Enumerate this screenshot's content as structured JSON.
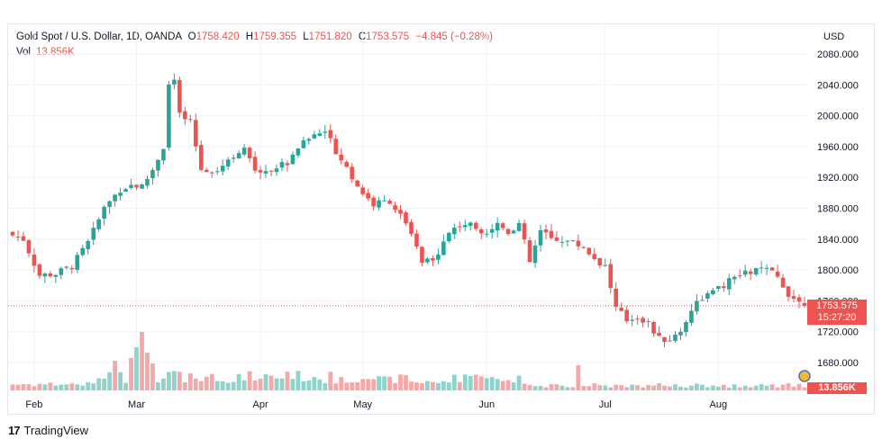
{
  "header": {
    "symbol": "Gold Spot / U.S. Dollar, 1D, OANDA",
    "open_label": "O",
    "open": "1758.420",
    "high_label": "H",
    "high": "1759.355",
    "low_label": "L",
    "low": "1751.820",
    "close_label": "C",
    "close": "1753.575",
    "change": "−4.845 (−0.28%)",
    "vol_label": "Vol",
    "vol": "13.856K",
    "currency": "USD"
  },
  "last_price": {
    "price": "1753.575",
    "countdown": "15:27:20",
    "volume": "13.856K",
    "value": 1753.575
  },
  "footer": {
    "brand": "TradingView"
  },
  "colors": {
    "up": "#26a69a",
    "down": "#ef5350",
    "up_vol": "#8fd3cd",
    "down_vol": "#f4a9a8",
    "grid": "#f0f3fa"
  },
  "chart_data": {
    "type": "candlestick",
    "title": "Gold Spot / U.S. Dollar, 1D, OANDA",
    "y_ticks": [
      1680,
      1720,
      1760,
      1800,
      1840,
      1880,
      1920,
      1960,
      2000,
      2040,
      2080
    ],
    "y_tick_labels": [
      "1680.000",
      "1720.000",
      "1760.000",
      "1800.000",
      "1840.000",
      "1880.000",
      "1920.000",
      "1960.000",
      "2000.000",
      "2040.000",
      "2080.000"
    ],
    "ylim": [
      1657,
      2096
    ],
    "x_months": [
      {
        "label": "Feb",
        "day": 4
      },
      {
        "label": "Mar",
        "day": 23
      },
      {
        "label": "Apr",
        "day": 46
      },
      {
        "label": "May",
        "day": 65
      },
      {
        "label": "Jun",
        "day": 88
      },
      {
        "label": "Jul",
        "day": 110
      },
      {
        "label": "Aug",
        "day": 131
      }
    ],
    "anchors": [
      [
        0,
        1845
      ],
      [
        2,
        1840
      ],
      [
        5,
        1793
      ],
      [
        8,
        1795
      ],
      [
        11,
        1805
      ],
      [
        14,
        1835
      ],
      [
        17,
        1880
      ],
      [
        20,
        1905
      ],
      [
        22,
        1910
      ],
      [
        24,
        1908
      ],
      [
        26,
        1930
      ],
      [
        28,
        1960
      ],
      [
        29,
        2040
      ],
      [
        30,
        2045
      ],
      [
        31,
        2000
      ],
      [
        33,
        1990
      ],
      [
        35,
        1930
      ],
      [
        38,
        1930
      ],
      [
        41,
        1950
      ],
      [
        43,
        1955
      ],
      [
        45,
        1930
      ],
      [
        48,
        1930
      ],
      [
        51,
        1940
      ],
      [
        53,
        1960
      ],
      [
        56,
        1975
      ],
      [
        58,
        1980
      ],
      [
        60,
        1955
      ],
      [
        63,
        1920
      ],
      [
        65,
        1900
      ],
      [
        67,
        1885
      ],
      [
        70,
        1890
      ],
      [
        72,
        1870
      ],
      [
        74,
        1845
      ],
      [
        76,
        1810
      ],
      [
        78,
        1810
      ],
      [
        80,
        1840
      ],
      [
        82,
        1855
      ],
      [
        84,
        1860
      ],
      [
        86,
        1855
      ],
      [
        88,
        1850
      ],
      [
        90,
        1860
      ],
      [
        92,
        1850
      ],
      [
        94,
        1860
      ],
      [
        96,
        1810
      ],
      [
        98,
        1850
      ],
      [
        100,
        1840
      ],
      [
        102,
        1840
      ],
      [
        104,
        1835
      ],
      [
        106,
        1830
      ],
      [
        108,
        1815
      ],
      [
        110,
        1805
      ],
      [
        112,
        1750
      ],
      [
        114,
        1735
      ],
      [
        116,
        1740
      ],
      [
        118,
        1730
      ],
      [
        120,
        1710
      ],
      [
        122,
        1710
      ],
      [
        124,
        1720
      ],
      [
        126,
        1750
      ],
      [
        128,
        1765
      ],
      [
        130,
        1770
      ],
      [
        132,
        1780
      ],
      [
        134,
        1790
      ],
      [
        136,
        1795
      ],
      [
        138,
        1800
      ],
      [
        140,
        1800
      ],
      [
        142,
        1790
      ],
      [
        144,
        1770
      ],
      [
        146,
        1758
      ],
      [
        147,
        1753.575
      ]
    ],
    "volume_spikes": [
      {
        "day": 23,
        "value": 48,
        "dir": "up"
      },
      {
        "day": 24,
        "value": 65,
        "dir": "down"
      },
      {
        "day": 25,
        "value": 42,
        "dir": "down"
      },
      {
        "day": 22,
        "value": 36,
        "dir": "down"
      },
      {
        "day": 26,
        "value": 30,
        "dir": "down"
      },
      {
        "day": 19,
        "value": 33,
        "dir": "down"
      }
    ],
    "last_volume": "13.856K"
  }
}
